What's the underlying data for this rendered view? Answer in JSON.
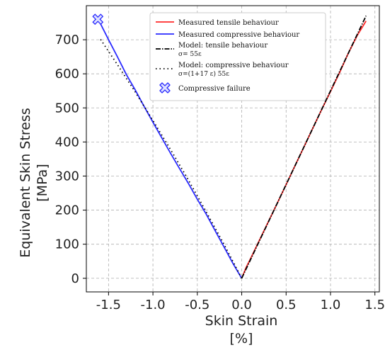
{
  "chart_data": {
    "type": "line",
    "xlabel": "Skin Strain",
    "xlabel_unit": "[%]",
    "ylabel": "Equivalent Skin Stress",
    "ylabel_unit": "[MPa]",
    "xlim": [
      -1.75,
      1.55
    ],
    "ylim": [
      -40,
      800
    ],
    "xticks": [
      "-1.5",
      "-1.0",
      "-0.5",
      "0.0",
      "0.5",
      "1.0",
      "1.5"
    ],
    "xtick_values": [
      -1.5,
      -1.0,
      -0.5,
      0.0,
      0.5,
      1.0,
      1.5
    ],
    "yticks": [
      "0",
      "100",
      "200",
      "300",
      "400",
      "500",
      "600",
      "700"
    ],
    "ytick_values": [
      0,
      100,
      200,
      300,
      400,
      500,
      600,
      700
    ],
    "grid": true,
    "legend_position": "top-center",
    "series": [
      {
        "name": "Measured tensile behaviour",
        "color": "#ff2a2a",
        "style": "solid",
        "x": [
          0.0,
          0.05,
          0.1,
          0.2,
          0.3,
          0.4,
          0.5,
          0.6,
          0.7,
          0.8,
          0.9,
          1.0,
          1.1,
          1.2,
          1.3,
          1.4
        ],
        "y": [
          0,
          32,
          58,
          112,
          166,
          220,
          275,
          330,
          385,
          440,
          495,
          548,
          602,
          660,
          712,
          755
        ]
      },
      {
        "name": "Measured compressive behaviour",
        "color": "#2a2aff",
        "style": "solid",
        "x": [
          0.0,
          -0.1,
          -0.2,
          -0.3,
          -0.4,
          -0.5,
          -0.6,
          -0.7,
          -0.8,
          -0.9,
          -1.0,
          -1.1,
          -1.2,
          -1.3,
          -1.4,
          -1.5,
          -1.6
        ],
        "y": [
          0,
          44,
          92,
          140,
          188,
          232,
          278,
          322,
          366,
          412,
          458,
          505,
          553,
          598,
          650,
          700,
          752
        ]
      },
      {
        "name": "Model: tensile behaviour",
        "sub": "σ= 55ε",
        "color": "#000000",
        "style": "dashdot",
        "x": [
          0.0,
          1.4
        ],
        "y": [
          0,
          770
        ]
      },
      {
        "name": "Model: compressive behaviour",
        "sub": "σ=(1+17 ε) 55ε",
        "color": "#000000",
        "style": "dotted",
        "x": [
          0.0,
          -0.2,
          -0.4,
          -0.6,
          -0.8,
          -1.0,
          -1.2,
          -1.4,
          -1.6
        ],
        "y": [
          0,
          100,
          195,
          288,
          377,
          463,
          547,
          627,
          705
        ]
      }
    ],
    "markers": [
      {
        "name": "Compressive failure",
        "color": "#2a2aff",
        "x": -1.62,
        "y": 760
      }
    ]
  }
}
